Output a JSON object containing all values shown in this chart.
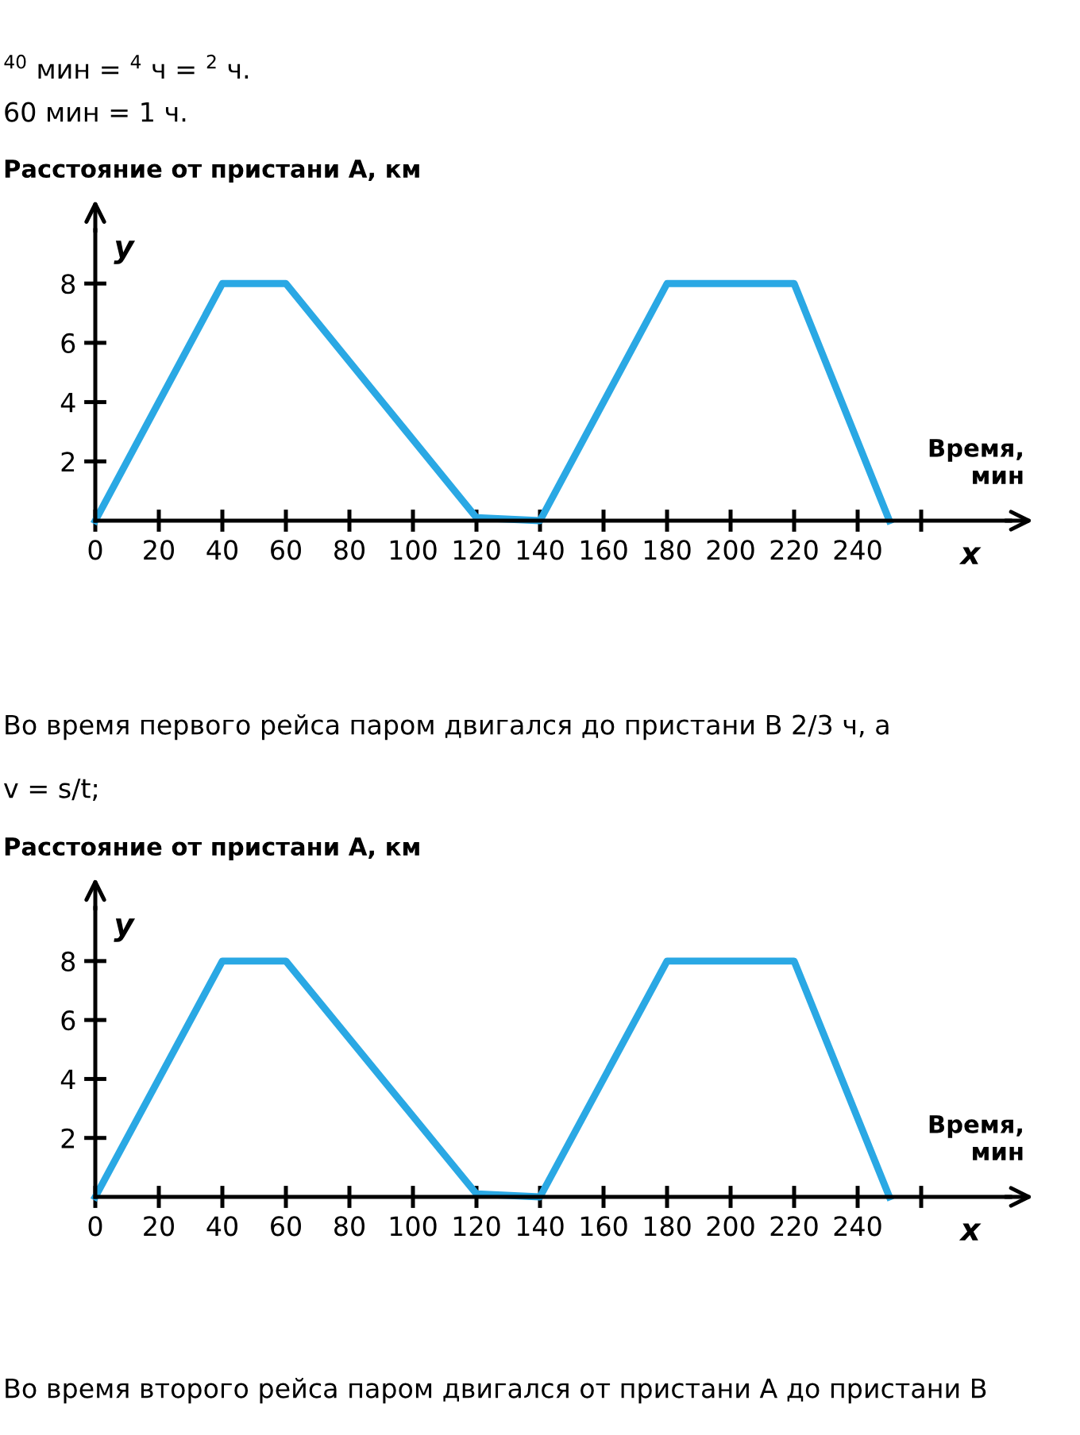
{
  "chart_data": [
    {
      "type": "line",
      "ylabel": "Расстояние от пристани А, км",
      "xlabel": "Время, мин",
      "x": [
        0,
        40,
        60,
        120,
        140,
        180,
        220,
        250
      ],
      "series": [
        {
          "color": "#2aa8e4",
          "values": [
            0,
            8,
            8,
            0.1,
            0,
            8,
            8,
            0
          ]
        }
      ],
      "xlim": [
        0,
        288
      ],
      "ylim": [
        0,
        9.8
      ],
      "xticks": [
        0,
        20,
        40,
        60,
        80,
        100,
        120,
        140,
        160,
        180,
        200,
        220,
        240,
        {
          "value": 260,
          "label": null
        }
      ],
      "yticks": [
        2,
        4,
        6,
        8
      ],
      "grid": false,
      "legend": false,
      "marker": "none",
      "line_style": "solid",
      "annotations": [
        "$^{40}$ мин = $^{4}$ ч = $^{2}$ ч.",
        "60 мин = 1 ч.",
        "Во время первого рейса паром двигался до пристани B 2/3 ч, а",
        "v = s/t;",
        "y",
        "x"
      ]
    },
    {
      "type": "line",
      "ylabel": "Расстояние от пристани А, км",
      "xlabel": "Время, мин",
      "x": [
        0,
        40,
        60,
        120,
        140,
        180,
        220,
        250
      ],
      "series": [
        {
          "color": "#2aa8e4",
          "values": [
            0,
            8,
            8,
            0.1,
            0,
            8,
            8,
            0
          ]
        }
      ],
      "xlim": [
        0,
        288
      ],
      "ylim": [
        0,
        9.8
      ],
      "xticks": [
        0,
        20,
        40,
        60,
        80,
        100,
        120,
        140,
        160,
        180,
        200,
        220,
        240,
        {
          "value": 260,
          "label": null
        }
      ],
      "yticks": [
        2,
        4,
        6,
        8
      ],
      "grid": false,
      "legend": false,
      "marker": "none",
      "line_style": "solid",
      "annotations": [
        "Во время второго рейса паром двигался от пристани A до пристани B",
        "y",
        "x"
      ]
    }
  ]
}
